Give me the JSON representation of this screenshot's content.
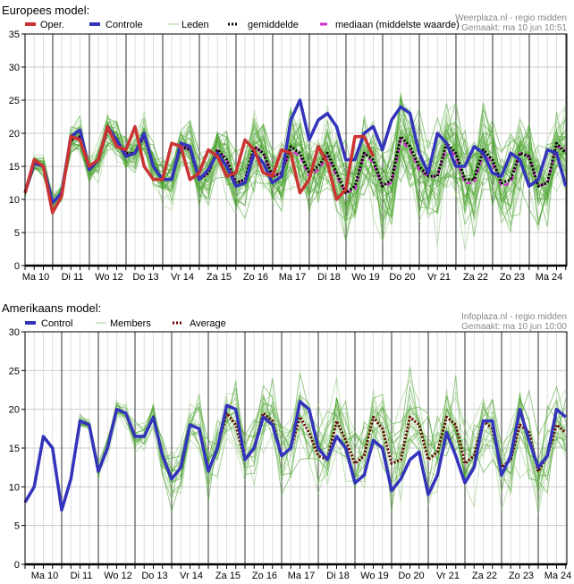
{
  "chart_data": [
    {
      "type": "line",
      "title": "Europees model:",
      "credit_line1": "Weerplaza.nl - regio midden",
      "credit_line2": "Gemaakt: ma 10 jun 10:51",
      "ylim": [
        0,
        35
      ],
      "yticks": [
        0,
        5,
        10,
        15,
        20,
        25,
        30,
        35
      ],
      "x_step_hours": 6,
      "day_labels": [
        "Ma 10",
        "Di 11",
        "Wo 12",
        "Do 13",
        "Vr 14",
        "Za 15",
        "Zo 16",
        "Ma 17",
        "Di 18",
        "Wo 19",
        "Do 20",
        "Vr 21",
        "Za 22",
        "Zo 23",
        "Ma 24"
      ],
      "legend": [
        {
          "key": "oper",
          "label": "Oper.",
          "color": "#cc3333",
          "style": "solid"
        },
        {
          "key": "control",
          "label": "Controle",
          "color": "#3333bb",
          "style": "solid"
        },
        {
          "key": "members",
          "label": "Leden",
          "color": "#9fd08f",
          "style": "thin"
        },
        {
          "key": "mean",
          "label": "gemiddelde",
          "color": "#000000",
          "style": "dotted"
        },
        {
          "key": "median",
          "label": "mediaan (middelste waarde)",
          "color": "#cc33cc",
          "style": "dashed"
        }
      ],
      "series": {
        "control": [
          11,
          15.5,
          15,
          9.5,
          11,
          19.5,
          20.5,
          14.5,
          16,
          21,
          19,
          16.5,
          17,
          20,
          15,
          13,
          13,
          18.5,
          18,
          13,
          14.5,
          17,
          15,
          12,
          12.5,
          17,
          15.5,
          12.5,
          13.5,
          22,
          25,
          19,
          22,
          23,
          21,
          16,
          16,
          20,
          21,
          17.5,
          22,
          24,
          23,
          17,
          14,
          20,
          18.5,
          15,
          15,
          18,
          17,
          14,
          13.5,
          17,
          16,
          12,
          13,
          17.5,
          17,
          12
        ],
        "oper": [
          11,
          16,
          15,
          8,
          10.5,
          19.5,
          19,
          15,
          16,
          21,
          18,
          17.5,
          21,
          15,
          13,
          13,
          18.5,
          18,
          13,
          14,
          17.5,
          16.5,
          13.5,
          14,
          19,
          17.5,
          14,
          13.5,
          17.5,
          17,
          11,
          13,
          18,
          15.5,
          10,
          11.5,
          19.5,
          19.5,
          16.5
        ],
        "mean": [
          11,
          15.5,
          15,
          9.5,
          11,
          19,
          19.5,
          14.5,
          16,
          20.5,
          19,
          17,
          17,
          19.5,
          15,
          13,
          13,
          18,
          17.5,
          13,
          14,
          17.5,
          16,
          12.5,
          13,
          18,
          17,
          13.5,
          14,
          18,
          17,
          14,
          15,
          17,
          14,
          11,
          12,
          17,
          16,
          12,
          13,
          19.5,
          18,
          15,
          13.5,
          13.5,
          18.5,
          17,
          13,
          13,
          17.5,
          16,
          12.5,
          13,
          17,
          16.5,
          12,
          12.5,
          18.5,
          17
        ],
        "median": [
          11,
          15.5,
          15,
          9.5,
          11,
          19,
          19.5,
          14.5,
          16,
          20.5,
          19,
          17,
          17,
          19.5,
          15,
          13,
          13,
          18,
          17.5,
          13,
          14,
          17.5,
          16,
          12.5,
          13,
          18,
          17,
          13.5,
          14,
          17.5,
          16.5,
          13.5,
          14.5,
          16.5,
          13.5,
          11,
          11.5,
          17,
          15.5,
          12,
          12.5,
          19,
          17.5,
          14.5,
          13.5,
          13.5,
          18,
          16.5,
          12.5,
          12.5,
          17,
          15.5,
          12,
          12.5,
          17,
          16.5,
          12,
          12.5,
          18,
          17.5
        ],
        "members_count": 40,
        "members_spread": [
          0.5,
          0.8,
          1,
          1,
          1,
          1.2,
          1.5,
          1.5,
          1.5,
          1.5,
          1.8,
          2,
          2,
          2,
          2,
          2,
          2,
          2.2,
          2.5,
          2.5,
          2.5,
          2.8,
          3,
          3,
          3,
          3.5,
          3.5,
          3.5,
          3.5,
          4,
          4,
          4,
          4,
          4,
          4,
          4,
          4,
          4,
          4.5,
          4.5,
          4.5,
          4.5,
          4.5,
          4.5,
          4.5,
          4.5,
          4.5,
          4.5,
          4.5,
          4.5,
          4.5,
          4.5,
          4.5,
          4.5,
          4.5,
          4.5,
          4.5,
          4.5,
          4.5,
          4.5
        ]
      }
    },
    {
      "type": "line",
      "title": "Amerikaans model:",
      "credit_line1": "Infoplaza.nl - regio midden",
      "credit_line2": "Gemaakt: ma 10 jun 10:00",
      "ylim": [
        0,
        30
      ],
      "yticks": [
        0,
        5,
        10,
        15,
        20,
        25,
        30
      ],
      "x_step_hours": 6,
      "day_labels": [
        "Ma 10",
        "Di 11",
        "Wo 12",
        "Do 13",
        "Vr 14",
        "Za 15",
        "Zo 16",
        "Ma 17",
        "Di 18",
        "Wo 19",
        "Do 20",
        "Vr 21",
        "Za 22",
        "Zo 23",
        "Ma 24"
      ],
      "legend": [
        {
          "key": "control",
          "label": "Control",
          "color": "#3333bb",
          "style": "solid"
        },
        {
          "key": "members",
          "label": "Members",
          "color": "#9fd08f",
          "style": "thin"
        },
        {
          "key": "mean",
          "label": "Average",
          "color": "#660000",
          "style": "dotted"
        }
      ],
      "series": {
        "control": [
          8,
          10,
          16.5,
          15,
          7,
          11,
          18.5,
          18,
          12,
          15,
          20,
          19.5,
          16.5,
          16.5,
          19,
          14,
          11,
          12.5,
          18,
          17.5,
          12,
          15,
          20.5,
          20,
          13.5,
          15,
          19,
          18,
          14,
          15,
          21,
          20,
          15,
          13.5,
          16.5,
          15,
          10.5,
          11.5,
          16,
          15,
          9.5,
          11,
          13.5,
          14.5,
          9,
          11.5,
          17,
          14,
          10.5,
          12.5,
          18.5,
          18.5,
          11.5,
          14,
          20,
          16,
          12.5,
          14,
          20,
          19
        ],
        "mean": [
          8,
          10,
          16.5,
          15,
          7,
          11,
          18.5,
          18,
          12,
          15,
          20,
          19.5,
          16.5,
          16.5,
          19,
          14,
          11,
          12.5,
          18,
          17.5,
          12,
          15,
          19.5,
          18,
          13.5,
          15,
          19.5,
          18.5,
          14,
          15,
          19,
          17,
          14,
          13.5,
          18.5,
          16,
          13,
          14,
          19,
          17.5,
          13,
          13.5,
          19,
          18,
          13.5,
          14.5,
          19,
          18,
          13,
          14,
          18.5,
          17.5,
          12.5,
          13.5,
          18,
          17,
          12,
          14,
          18,
          17
        ],
        "members_count": 20,
        "members_spread": [
          0,
          0,
          0,
          0,
          0,
          0.3,
          0.5,
          0.5,
          0.8,
          1,
          1,
          1,
          1.2,
          1.5,
          1.5,
          1.8,
          2,
          2,
          2,
          2.2,
          2.5,
          2.5,
          2.8,
          3,
          3,
          3,
          3.2,
          3.5,
          3.5,
          3.5,
          3.5,
          3.5,
          3.5,
          3.5,
          3.5,
          3.5,
          3.5,
          3.5,
          3.5,
          3.5,
          3.5,
          3.5,
          3.5,
          3.5,
          3.5,
          3.5,
          3.5,
          3.5,
          3.5,
          3.5,
          3.5,
          3.5,
          3.5,
          3.5,
          3.5,
          3.5,
          3.5,
          3.5,
          3.5,
          3.5
        ]
      }
    }
  ]
}
